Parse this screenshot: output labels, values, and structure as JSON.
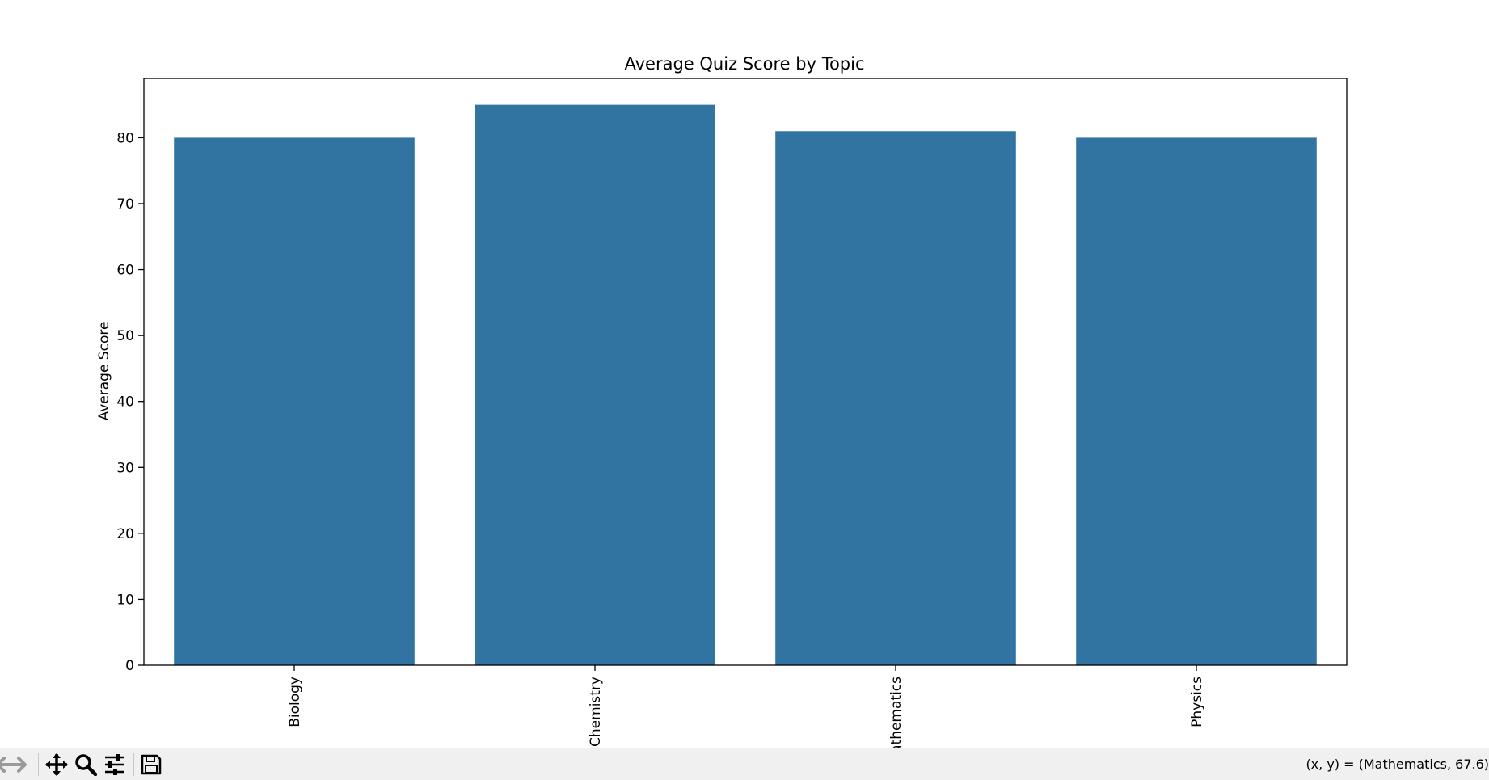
{
  "chart_data": {
    "type": "bar",
    "title": "Average Quiz Score by Topic",
    "xlabel": "",
    "ylabel": "Average Score",
    "categories": [
      "Biology",
      "Chemistry",
      "Mathematics",
      "Physics"
    ],
    "values": [
      80,
      85,
      81,
      80
    ],
    "ylim": [
      0,
      89
    ],
    "yticks": [
      0,
      10,
      20,
      30,
      40,
      50,
      60,
      70,
      80
    ],
    "bar_color": "#3274a1",
    "grid": false,
    "legend": "none",
    "xtick_rotation": "vertical"
  },
  "toolbar": {
    "icons": [
      "back-icon",
      "forward-icon",
      "pan-icon",
      "zoom-icon",
      "configure-subplots-icon",
      "save-icon"
    ],
    "coords_text": "(x, y) = (Mathematics, 67.6)"
  }
}
